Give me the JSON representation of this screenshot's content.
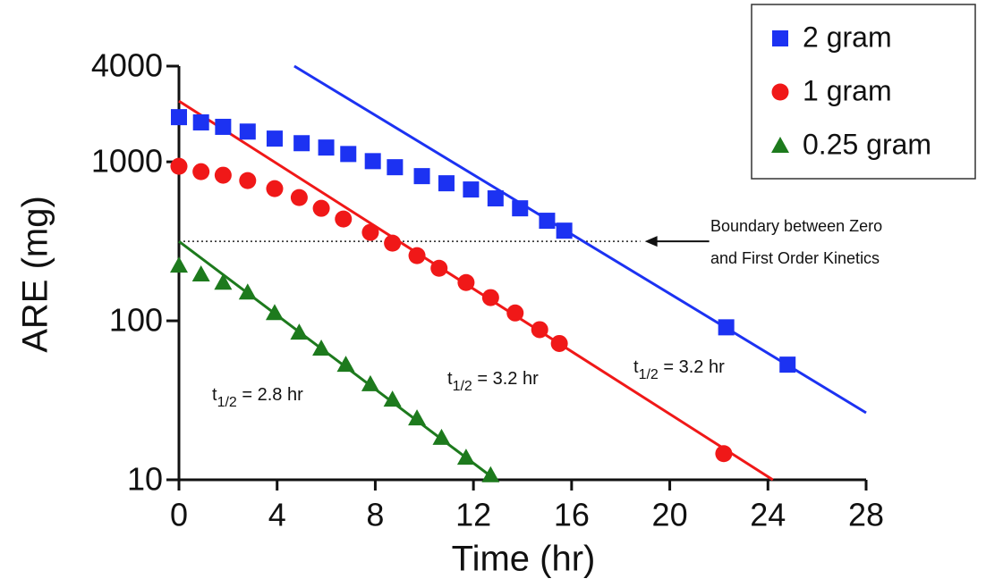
{
  "chart_data": {
    "type": "scatter",
    "x_label": "Time (hr)",
    "y_label": "ARE (mg)",
    "log_y": true,
    "xlim": [
      0,
      28
    ],
    "ylim": [
      10,
      4000
    ],
    "xticks": [
      0,
      4,
      8,
      12,
      16,
      20,
      24,
      28
    ],
    "yticks": [
      10,
      100,
      1000,
      4000
    ],
    "legend": "top-right",
    "series": [
      {
        "name": "2 gram",
        "color": "#1c32f2",
        "marker": "square",
        "x": [
          0,
          0.9,
          1.8,
          2.8,
          3.9,
          5.0,
          6.0,
          6.9,
          7.9,
          8.8,
          9.9,
          10.9,
          11.9,
          12.9,
          13.9,
          15.0,
          15.7,
          22.3,
          24.8
        ],
        "values": [
          1910,
          1770,
          1660,
          1550,
          1400,
          1310,
          1230,
          1120,
          1010,
          925,
          813,
          733,
          670,
          589,
          510,
          426,
          369,
          91,
          53
        ]
      },
      {
        "name": "1 gram",
        "color": "#f01818",
        "marker": "circle",
        "x": [
          0,
          0.9,
          1.8,
          2.8,
          3.9,
          4.9,
          5.8,
          6.7,
          7.8,
          8.7,
          9.7,
          10.6,
          11.7,
          12.7,
          13.7,
          14.7,
          15.5,
          22.2
        ],
        "values": [
          937,
          867,
          824,
          762,
          678,
          596,
          510,
          437,
          360,
          308,
          257,
          214,
          174,
          140,
          112,
          88,
          72,
          14.6
        ]
      },
      {
        "name": "0.25 gram",
        "color": "#1d7a1d",
        "marker": "triangle",
        "x": [
          0,
          0.9,
          1.8,
          2.8,
          3.9,
          4.9,
          5.8,
          6.8,
          7.8,
          8.7,
          9.7,
          10.7,
          11.7,
          12.7
        ],
        "values": [
          223,
          196,
          174,
          151,
          112,
          84.5,
          67,
          53,
          40,
          32,
          24.4,
          18.4,
          13.8,
          10.7
        ]
      }
    ],
    "fits": [
      {
        "color": "#1c32f2",
        "x": [
          4.7,
          28
        ],
        "values": [
          4000,
          26.4
        ]
      },
      {
        "color": "#f01818",
        "x": [
          0,
          24.2
        ],
        "values": [
          2410,
          10
        ]
      },
      {
        "color": "#1d7a1d",
        "x": [
          0,
          12.9
        ],
        "values": [
          316,
          10
        ]
      }
    ],
    "reference_line": {
      "value": 316,
      "x": [
        0,
        18.8
      ]
    },
    "boundary_label": [
      "Boundary between Zero",
      "and First Order Kinetics"
    ],
    "half_lives": [
      {
        "t": "t",
        "sub": "1/2",
        "text": " = 2.8 hr"
      },
      {
        "t": "t",
        "sub": "1/2",
        "text": " = 3.2 hr"
      },
      {
        "t": "t",
        "sub": "1/2",
        "text": " = 3.2 hr"
      }
    ]
  }
}
